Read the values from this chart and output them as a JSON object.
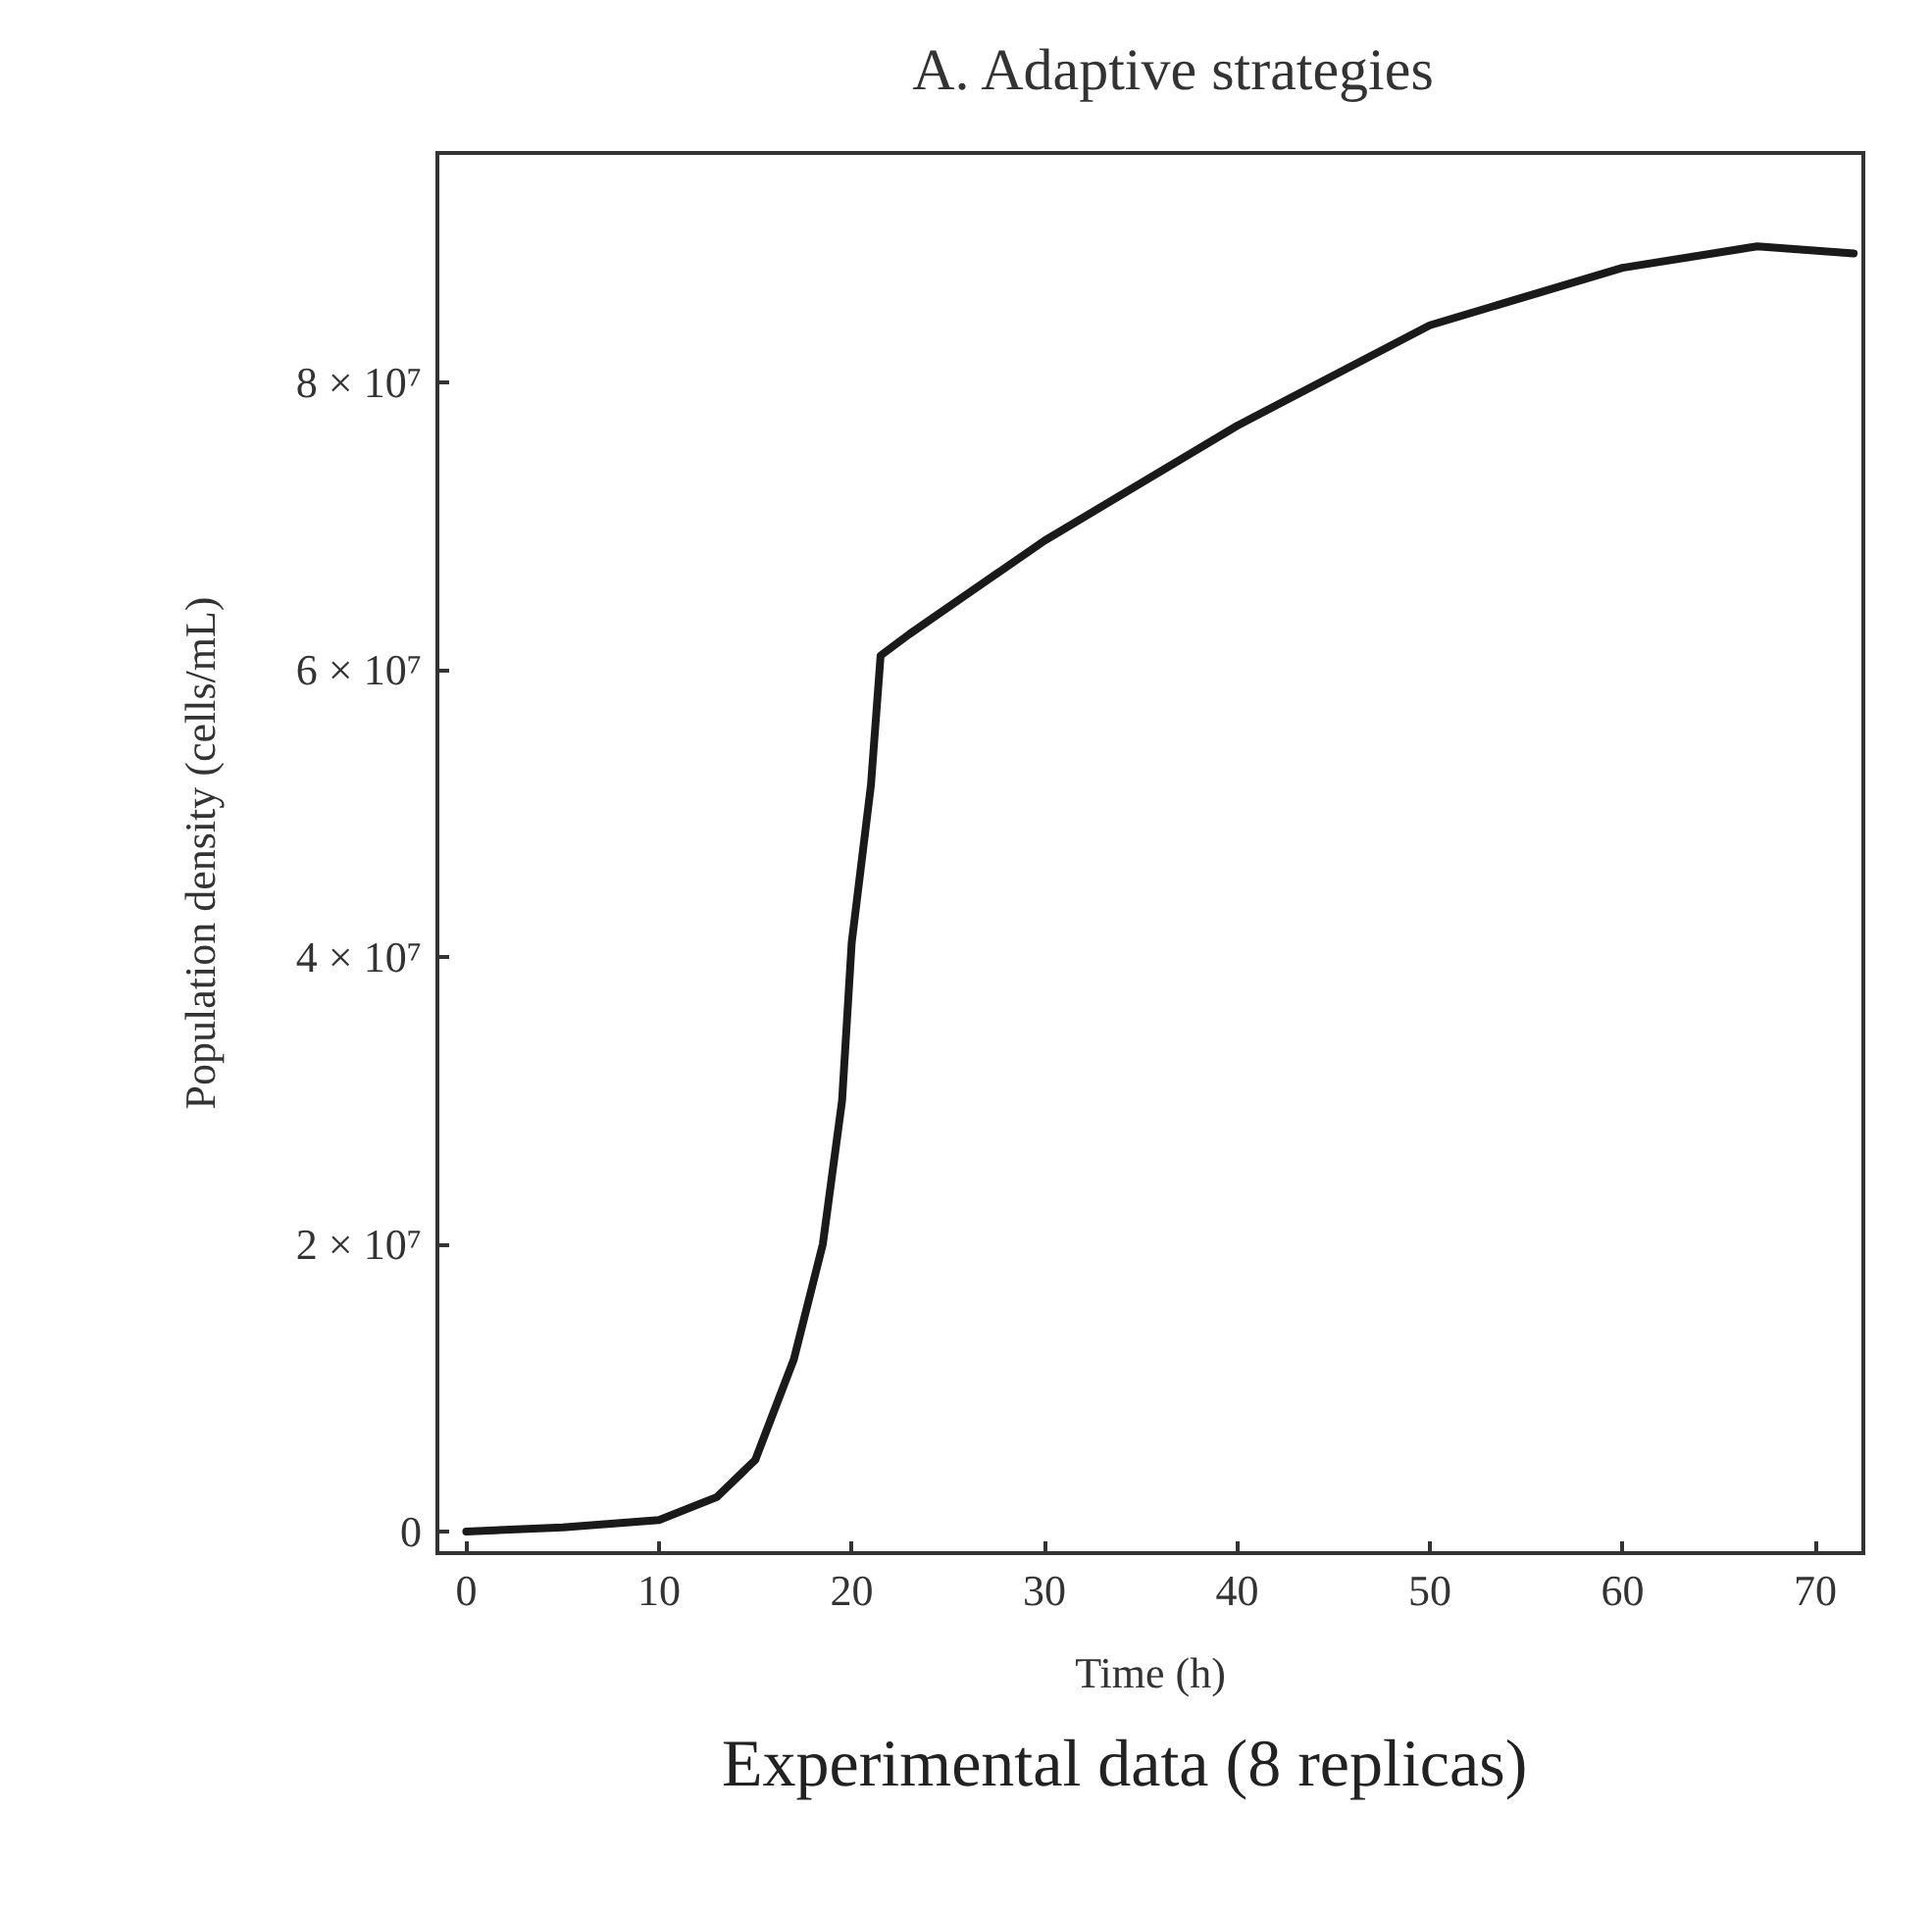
{
  "chart_data": {
    "type": "line",
    "title": "A. Adaptive strategies",
    "xlabel": "Time (h)",
    "ylabel": "Population density (cells/mL)",
    "annotations": [
      "Experimental data (8 replicas)"
    ],
    "x": [
      0,
      5,
      10,
      13,
      15,
      17,
      18.5,
      19.5,
      20,
      21,
      21.5,
      23,
      30,
      40,
      50,
      60,
      67,
      72
    ],
    "series": [
      {
        "color": "#1a1a1a",
        "values": [
          0,
          300000,
          800000,
          2400000,
          5000000,
          12000000,
          20000000,
          30000000,
          41000000,
          52000000,
          61000000,
          62500000,
          69000000,
          77000000,
          84000000,
          88000000,
          89500000,
          89000000
        ]
      }
    ],
    "xlim": [
      -1.5,
      72.5
    ],
    "xticks": [
      0,
      10,
      20,
      30,
      40,
      50,
      60,
      70
    ],
    "ylim": [
      -1500000,
      96000000
    ],
    "yticks": [
      0,
      {
        "value": 20000000,
        "label": "2 × 10⁷"
      },
      {
        "value": 40000000,
        "label": "4 × 10⁷"
      },
      {
        "value": 60000000,
        "label": "6 × 10⁷"
      },
      {
        "value": 80000000,
        "label": "8 × 10⁷"
      }
    ],
    "grid": false,
    "marker": "none",
    "line_style": "solid"
  }
}
